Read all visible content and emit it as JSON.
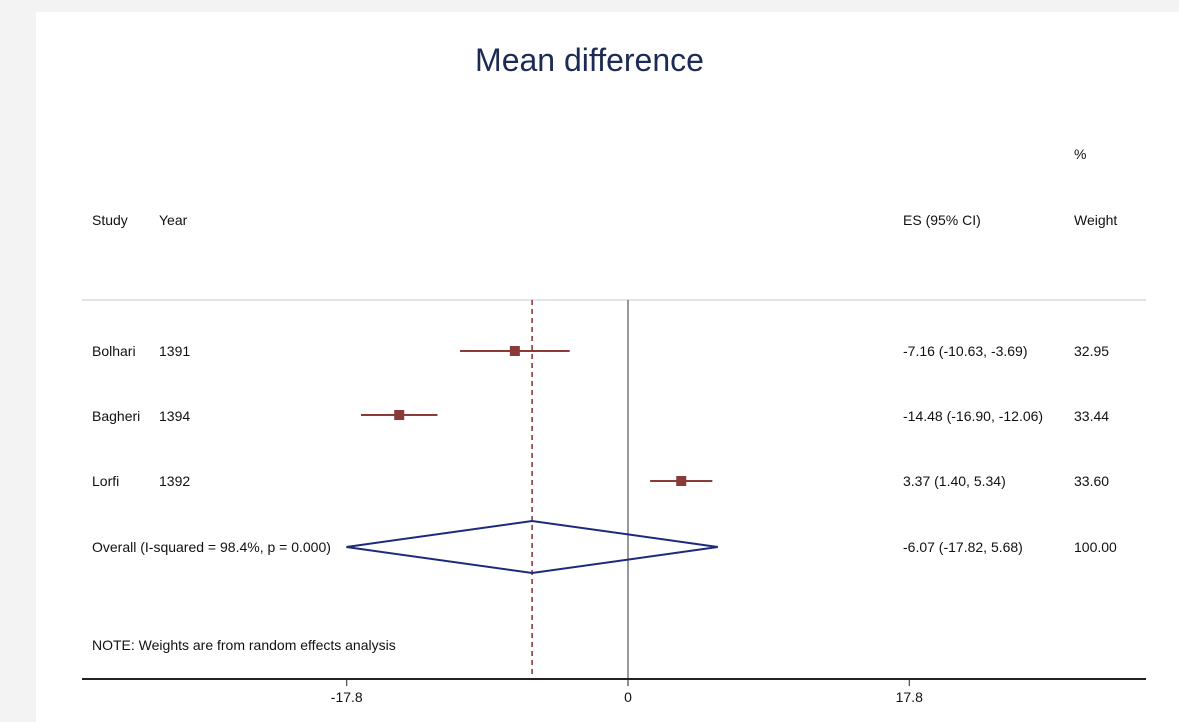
{
  "chart_data": {
    "type": "forest",
    "title": "Mean difference",
    "columns": {
      "study": "Study",
      "year": "Year",
      "es": "ES (95% CI)",
      "weight_top": "%",
      "weight": "Weight"
    },
    "studies": [
      {
        "study": "Bolhari",
        "year": "1391",
        "es": -7.16,
        "lo": -10.63,
        "hi": -3.69,
        "es_text": "-7.16 (-10.63, -3.69)",
        "weight": "32.95"
      },
      {
        "study": "Bagheri",
        "year": "1394",
        "es": -14.48,
        "lo": -16.9,
        "hi": -12.06,
        "es_text": "-14.48 (-16.90, -12.06)",
        "weight": "33.44"
      },
      {
        "study": "Lorfi",
        "year": "1392",
        "es": 3.37,
        "lo": 1.4,
        "hi": 5.34,
        "es_text": "3.37 (1.40, 5.34)",
        "weight": "33.60"
      }
    ],
    "overall": {
      "label": "Overall  (I-squared = 98.4%, p = 0.000)",
      "es": -6.07,
      "lo": -17.82,
      "hi": 5.68,
      "es_text": "-6.07 (-17.82, 5.68)",
      "weight": "100.00"
    },
    "note": "NOTE: Weights are from random effects analysis",
    "x_ticks": [
      -17.8,
      0,
      17.8
    ],
    "x_tick_labels": [
      "-17.8",
      "0",
      "17.8"
    ],
    "null_line": 0,
    "colors": {
      "study_marker": "#8b3a3a",
      "diamond": "#1d2a7a",
      "overall_line": "#8b3a3a",
      "title": "#1d2a55"
    }
  }
}
